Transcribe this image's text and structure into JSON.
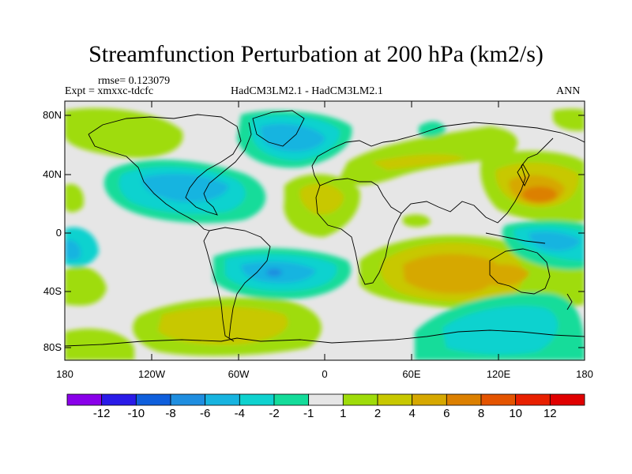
{
  "title": "Streamfunction Perturbation at 200 hPa (km2/s)",
  "rmse_label": "rmse= 0.123079",
  "expt_label": "Expt = xmxxc-tdcfc",
  "models_label": "HadCM3LM2.1 - HadCM3LM2.1",
  "season_label": "ANN",
  "lat_labels": [
    "80N",
    "40N",
    "0",
    "40S",
    "80S"
  ],
  "lon_labels": [
    "180",
    "120W",
    "60W",
    "0",
    "60E",
    "120E",
    "180"
  ],
  "colorbar": {
    "colors": [
      "#8a00ea",
      "#2a1be8",
      "#0f5fdc",
      "#1f8ee0",
      "#17b4e0",
      "#0fd2cf",
      "#14dc9a",
      "#e6e6e6",
      "#9fdc0a",
      "#c8c800",
      "#d6a800",
      "#dc8000",
      "#e45400",
      "#e82000",
      "#e00000"
    ],
    "labels": [
      "-12",
      "-10",
      "-8",
      "-6",
      "-4",
      "-2",
      "-1",
      "1",
      "2",
      "4",
      "6",
      "8",
      "10",
      "12"
    ]
  }
}
